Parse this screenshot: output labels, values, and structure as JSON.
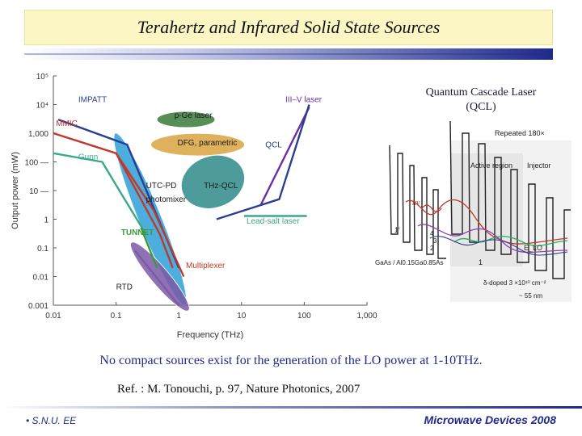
{
  "slide": {
    "title": "Terahertz and Infrared Solid State Sources",
    "conclusion": "No compact sources exist for the generation of the LO power at 1-10THz.",
    "reference": "Ref. :   M. Tonouchi, p. 97, Nature Photonics, 2007",
    "footer_left": "• S.N.U. EE",
    "footer_right": "Microwave Devices 2008"
  },
  "qcl_inset": {
    "title_line1": "Quantum Cascade Laser",
    "title_line2": "(QCL)",
    "labels": {
      "repeated": "Repeated 180×",
      "active_region": "Active region",
      "injector": "Injector",
      "hv": "hν",
      "level_1p": "1'",
      "level_4": "4",
      "level_3": "3",
      "level_2": "2",
      "level_1": "1",
      "elo": "E_LO",
      "material": "GaAs / Al0.15Ga0.85As",
      "doping": "δ-doped 3 ×10¹⁰ cm⁻²",
      "length": "~ 55 nm"
    }
  },
  "chart_data": {
    "type": "line",
    "xlabel": "Frequency (THz)",
    "ylabel": "Output power (mW)",
    "xscale": "log",
    "yscale": "log",
    "xlim": [
      0.01,
      1000
    ],
    "ylim": [
      0.001,
      100000
    ],
    "x_ticks": [
      0.01,
      0.1,
      1,
      10,
      100,
      1000
    ],
    "x_tick_labels": [
      "0.01",
      "0.1",
      "1",
      "10",
      "100",
      "1,000"
    ],
    "y_ticks": [
      0.001,
      0.01,
      0.1,
      1,
      10,
      100,
      1000,
      10000,
      100000
    ],
    "y_tick_labels": [
      "0.001",
      "0.01",
      "0.1",
      "1",
      "10 —",
      "100 —",
      "1,000",
      "10⁴",
      "10⁵"
    ],
    "grid": false,
    "series": [
      {
        "name": "IMPATT",
        "color": "#2a3f8f",
        "points": [
          [
            0.012,
            3000
          ],
          [
            0.15,
            400
          ],
          [
            1.0,
            0.02
          ]
        ]
      },
      {
        "name": "MMIC",
        "color": "#c0392b",
        "points": [
          [
            0.01,
            1000
          ],
          [
            0.1,
            200
          ],
          [
            0.5,
            0.3
          ],
          [
            0.8,
            0.02
          ]
        ]
      },
      {
        "name": "Gunn",
        "color": "#3aa88a",
        "points": [
          [
            0.01,
            200
          ],
          [
            0.06,
            100
          ],
          [
            0.12,
            8
          ],
          [
            0.3,
            0.3
          ]
        ]
      },
      {
        "name": "TUNNET",
        "color": "#3a9a3a",
        "points": [
          [
            0.25,
            0.5
          ],
          [
            0.45,
            0.02
          ]
        ]
      },
      {
        "name": "Multiplexer",
        "color": "#c0392b",
        "points": [
          [
            0.1,
            200
          ],
          [
            0.4,
            2
          ],
          [
            1.2,
            0.01
          ]
        ]
      },
      {
        "name": "III–V laser",
        "color": "#6b2fa0",
        "points": [
          [
            20,
            3
          ],
          [
            120,
            8000
          ]
        ]
      },
      {
        "name": "QCL",
        "color": "#2a3f8f",
        "points": [
          [
            4,
            1
          ],
          [
            40,
            5
          ],
          [
            120,
            10000
          ]
        ]
      },
      {
        "name": "Lead-salt laser",
        "color": "#3aa88a",
        "points": [
          [
            11,
            1.3
          ],
          [
            110,
            1.3
          ]
        ]
      },
      {
        "name": "RTD",
        "color": "#7b5aa6",
        "points": [
          [
            0.2,
            0.08
          ],
          [
            1,
            0.001
          ]
        ]
      }
    ],
    "regions": [
      {
        "name": "p-Ge laser",
        "color": "#3a7a3a",
        "center": [
          1.3,
          3000
        ]
      },
      {
        "name": "DFG, parametric",
        "color": "#d9a441",
        "center": [
          2,
          400
        ]
      },
      {
        "name": "THz-QCL",
        "color": "#2f8a8a",
        "center": [
          3.5,
          20
        ]
      },
      {
        "name": "UTC-PD photomixer",
        "color": "#2e9fd8",
        "center": [
          0.35,
          1
        ]
      },
      {
        "name": "RTD",
        "color": "#7b5aa6",
        "center": [
          0.5,
          0.01
        ]
      }
    ],
    "annotations": [
      {
        "text": "IMPATT",
        "color": "#2a3f8f"
      },
      {
        "text": "MMIC",
        "color": "#c0392b"
      },
      {
        "text": "Gunn",
        "color": "#3aa88a"
      },
      {
        "text": "p-Ge laser",
        "color": "#1a1a1a"
      },
      {
        "text": "DFG, parametric",
        "color": "#1a1a1a"
      },
      {
        "text": "III–V laser",
        "color": "#6b2fa0"
      },
      {
        "text": "QCL",
        "color": "#2a3f8f"
      },
      {
        "text": "UTC-PD",
        "color": "#1a1a1a"
      },
      {
        "text": "photomixer",
        "color": "#1a1a1a"
      },
      {
        "text": "THz-QCL",
        "color": "#1a1a1a"
      },
      {
        "text": "Lead-salt laser",
        "color": "#3aa88a"
      },
      {
        "text": "TUNNET",
        "color": "#3a9a3a"
      },
      {
        "text": "Multiplexer",
        "color": "#c0392b"
      },
      {
        "text": "RTD",
        "color": "#1a1a1a"
      }
    ]
  }
}
